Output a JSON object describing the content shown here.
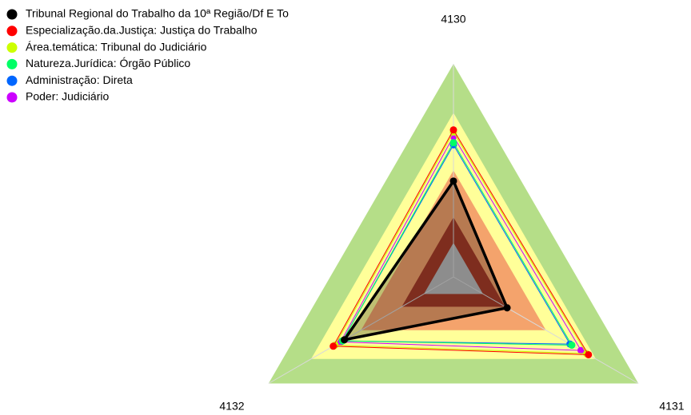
{
  "chart_data": {
    "type": "radar",
    "axes": [
      "4130",
      "4131",
      "4132"
    ],
    "rlim": [
      0,
      1
    ],
    "bands": [
      {
        "to": 0.16,
        "color": "#bdbdbd"
      },
      {
        "to": 0.28,
        "color": "#a83c28"
      },
      {
        "to": 0.5,
        "color": "#f4a36c"
      },
      {
        "to": 0.77,
        "color": "#ffff99"
      },
      {
        "to": 1,
        "color": "#b5de88"
      }
    ],
    "series": [
      {
        "name": "Tribunal Regional do Trabalho da 10ª Região/Df E To",
        "color": "#000000",
        "values": [
          0.45,
          0.29,
          0.59
        ]
      },
      {
        "name": "Especialização.da.Justiça: Justiça do Trabalho",
        "color": "#ff0000",
        "values": [
          0.69,
          0.73,
          0.65
        ]
      },
      {
        "name": "Área.temática: Tribunal do Judiciário",
        "color": "#ccff00",
        "values": [
          0.68,
          0.72,
          0.64
        ]
      },
      {
        "name": "Natureza.Jurídica: Órgão Público",
        "color": "#00ff66",
        "values": [
          0.63,
          0.64,
          0.6
        ]
      },
      {
        "name": "Administração: Direta",
        "color": "#0066ff",
        "values": [
          0.62,
          0.63,
          0.6
        ]
      },
      {
        "name": "Poder: Judiciário",
        "color": "#cc00ff",
        "values": [
          0.66,
          0.69,
          0.61
        ]
      }
    ]
  }
}
